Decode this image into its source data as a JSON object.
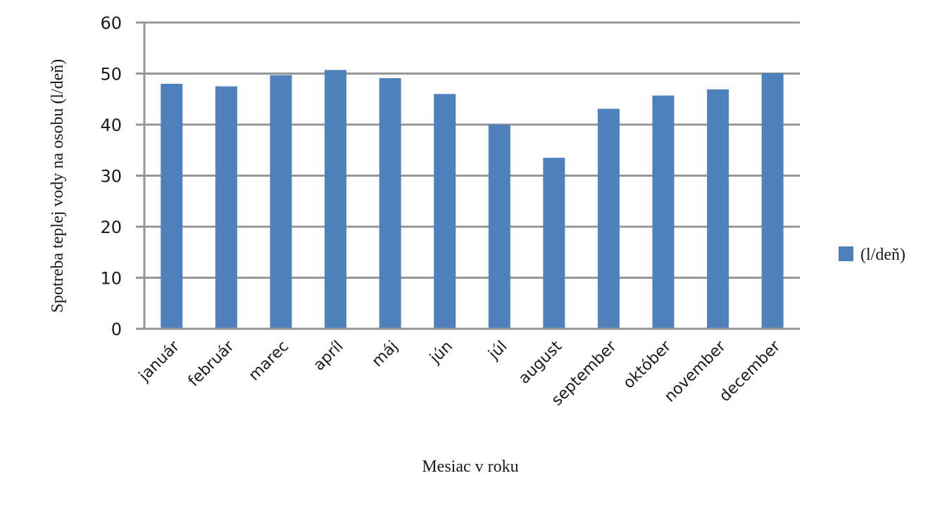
{
  "chart_data": {
    "type": "bar",
    "title": "",
    "xlabel": "Mesiac v roku",
    "ylabel": "Spotreba teplej vody na osobu (l/deň)",
    "categories": [
      "január",
      "február",
      "marec",
      "apríl",
      "máj",
      "jún",
      "júl",
      "august",
      "september",
      "október",
      "november",
      "december"
    ],
    "series": [
      {
        "name": "(l/deň)",
        "color": "#4f81bd",
        "values": [
          48.0,
          47.5,
          49.7,
          50.7,
          49.1,
          46.0,
          40.0,
          33.5,
          43.1,
          45.7,
          46.9,
          50.1
        ]
      }
    ],
    "ylim": [
      0,
      60
    ],
    "yticks": [
      0,
      10,
      20,
      30,
      40,
      50,
      60
    ],
    "grid": true,
    "legend_position": "right",
    "gridline_color": "#969696"
  }
}
